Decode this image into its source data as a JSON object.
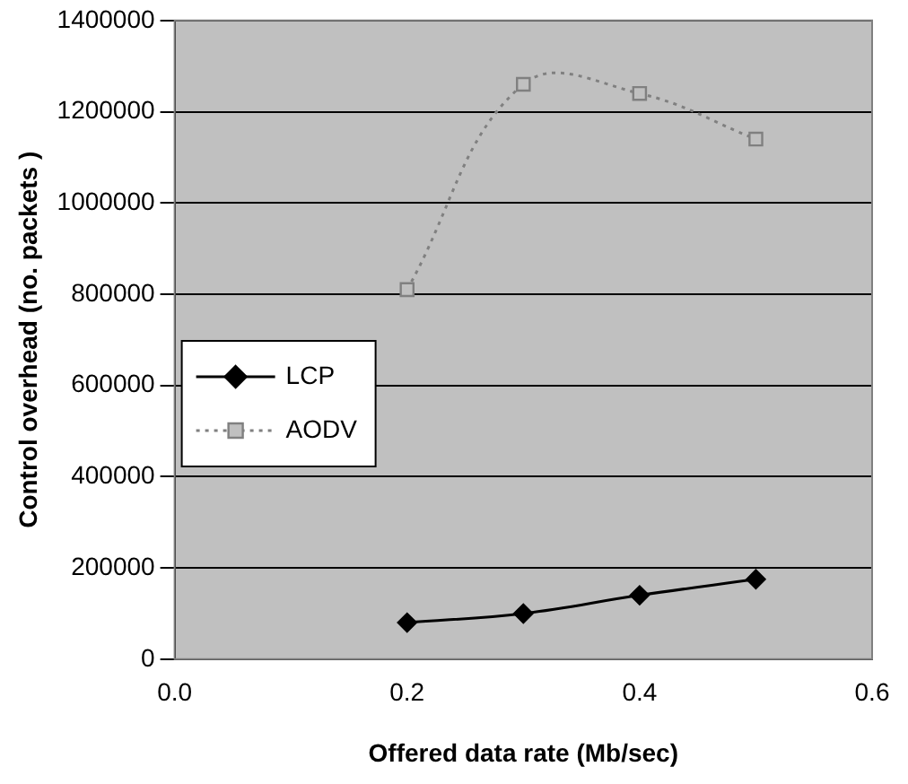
{
  "chart_data": {
    "type": "line",
    "xlabel": "Offered data rate (Mb/sec)",
    "ylabel": "Control overhead (no. packets )",
    "x": [
      0.2,
      0.3,
      0.4,
      0.5
    ],
    "series": [
      {
        "name": "LCP",
        "color": "#000000",
        "marker": "diamond",
        "line_style": "solid",
        "values": [
          80000,
          100000,
          140000,
          175000
        ]
      },
      {
        "name": "AODV",
        "color": "#808080",
        "marker": "square",
        "line_style": "dotted",
        "values": [
          810000,
          1260000,
          1240000,
          1140000
        ]
      }
    ],
    "xlim": [
      0,
      0.6
    ],
    "xticks": [
      {
        "value": 0,
        "label": "0.0"
      },
      {
        "value": 0.2,
        "label": "0.2"
      },
      {
        "value": 0.4,
        "label": "0.4"
      },
      {
        "value": 0.6,
        "label": "0.6"
      }
    ],
    "ylim": [
      0,
      1400000
    ],
    "yticks": [
      0,
      200000,
      400000,
      600000,
      800000,
      1000000,
      1200000,
      1400000
    ],
    "grid": "y",
    "legend": "left"
  }
}
